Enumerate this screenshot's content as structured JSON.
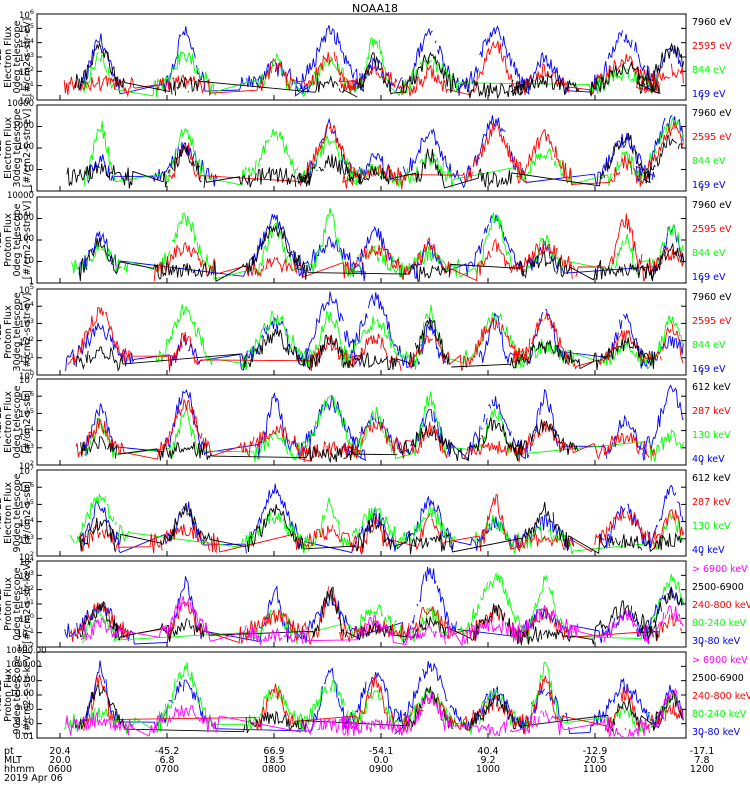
{
  "title": "NOAA18",
  "date_label": "2019 Apr 06",
  "axis_rows": [
    {
      "label": "pt",
      "values": [
        "20.4",
        "-45.2",
        "66.9",
        "-54.1",
        "40.4",
        "-12.9",
        "-17.1"
      ]
    },
    {
      "label": "MLT",
      "values": [
        "20.0",
        "6.8",
        "18.5",
        "0.0",
        "9.2",
        "20.5",
        "7.8"
      ]
    },
    {
      "label": "hhmm",
      "values": [
        "0600",
        "0700",
        "0800",
        "0900",
        "1000",
        "1100",
        "1200"
      ]
    }
  ],
  "colors": {
    "blue": "#0000ff",
    "red": "#ff0000",
    "green": "#00ff00",
    "black": "#000000",
    "magenta": "#ff00ff"
  },
  "chart_data": [
    {
      "type": "line",
      "ylabel": [
        "TED",
        "Electron Flux",
        "0deg telescope",
        "[#/cm2-s-str-eV]"
      ],
      "ylim": [
        1,
        1000000
      ],
      "log": true,
      "yticks": [
        "10^0",
        "10^1",
        "10^2",
        "10^3",
        "10^4",
        "10^5",
        "10^6"
      ],
      "series": [
        {
          "name": "7960 eV",
          "color": "#000000"
        },
        {
          "name": "2595 eV",
          "color": "#ff0000"
        },
        {
          "name": "844 eV",
          "color": "#00ff00"
        },
        {
          "name": "169 eV",
          "color": "#0000ff"
        }
      ]
    },
    {
      "type": "line",
      "ylabel": [
        "TED",
        "Electron Flux",
        "30deg telescope",
        "[#/cm2-s-str-eV]"
      ],
      "ylim": [
        1,
        10000
      ],
      "log": true,
      "yticks": [
        "1",
        "10",
        "100",
        "1000",
        "10000"
      ],
      "series": [
        {
          "name": "7960 eV",
          "color": "#000000"
        },
        {
          "name": "2595 eV",
          "color": "#ff0000"
        },
        {
          "name": "844 eV",
          "color": "#00ff00"
        },
        {
          "name": "169 eV",
          "color": "#0000ff"
        }
      ]
    },
    {
      "type": "line",
      "ylabel": [
        "TED",
        "Proton Flux",
        "0deg telescope",
        "[#/cm2-s-str-eV]"
      ],
      "ylim": [
        1,
        10000
      ],
      "log": true,
      "yticks": [
        "1",
        "10",
        "100",
        "1000",
        "10000"
      ],
      "series": [
        {
          "name": "7960 eV",
          "color": "#000000"
        },
        {
          "name": "2595 eV",
          "color": "#ff0000"
        },
        {
          "name": "844 eV",
          "color": "#00ff00"
        },
        {
          "name": "169 eV",
          "color": "#0000ff"
        }
      ]
    },
    {
      "type": "line",
      "ylabel": [
        "TED",
        "Proton Flux",
        "30deg telescope",
        "[#/cm2-s-str-eV]"
      ],
      "ylim": [
        1,
        100000
      ],
      "log": true,
      "yticks": [
        "10^0",
        "10^1",
        "10^2",
        "10^3",
        "10^4",
        "10^5"
      ],
      "series": [
        {
          "name": "7960 eV",
          "color": "#000000"
        },
        {
          "name": "2595 eV",
          "color": "#ff0000"
        },
        {
          "name": "844 eV",
          "color": "#00ff00"
        },
        {
          "name": "169 eV",
          "color": "#0000ff"
        }
      ]
    },
    {
      "type": "line",
      "ylabel": [
        "MEPED",
        "Electron Flux",
        "0deg telescope",
        "[#/cm2-s-str]"
      ],
      "ylim": [
        100,
        10000000
      ],
      "log": true,
      "yticks": [
        "10^2",
        "10^3",
        "10^4",
        "10^5",
        "10^6",
        "10^7"
      ],
      "series": [
        {
          "name": "612 keV",
          "color": "#000000"
        },
        {
          "name": "287 keV",
          "color": "#ff0000"
        },
        {
          "name": "130 keV",
          "color": "#00ff00"
        },
        {
          "name": "40 keV",
          "color": "#0000ff"
        }
      ]
    },
    {
      "type": "line",
      "ylabel": [
        "MEPED",
        "Electron Flux",
        "90deg telescope",
        "[#/cm2-s-str]"
      ],
      "ylim": [
        100,
        10000000
      ],
      "log": true,
      "yticks": [
        "10^2",
        "10^3",
        "10^4",
        "10^5",
        "10^6",
        "10^7"
      ],
      "series": [
        {
          "name": "612 keV",
          "color": "#000000"
        },
        {
          "name": "287 keV",
          "color": "#ff0000"
        },
        {
          "name": "130 keV",
          "color": "#00ff00"
        },
        {
          "name": "40 keV",
          "color": "#0000ff"
        }
      ]
    },
    {
      "type": "line",
      "ylabel": [
        "MEPED",
        "Proton Flux",
        "0deg telescope",
        "[#/cm2-s-str-keV]"
      ],
      "ylim": [
        0.01,
        10000
      ],
      "log": true,
      "yticks": [
        "10^-2",
        "10^-1",
        "10^0",
        "10^1",
        "10^2",
        "10^3",
        "10^4"
      ],
      "series": [
        {
          "name": "> 6900 keV",
          "color": "#ff00ff"
        },
        {
          "name": "2500-6900",
          "color": "#000000"
        },
        {
          "name": "240-800 keV",
          "color": "#ff0000"
        },
        {
          "name": "80-240 keV",
          "color": "#00ff00"
        },
        {
          "name": "30-80 keV",
          "color": "#0000ff"
        }
      ]
    },
    {
      "type": "line",
      "ylabel": [
        "MEPED",
        "Proton Flux",
        "90deg telescope",
        "[#/cm2-s-str-keV]"
      ],
      "ylim": [
        0.01,
        10000
      ],
      "log": true,
      "yticks": [
        "0.01",
        "0.10",
        "1.00",
        "10.00",
        "100.00",
        "1000.00",
        "10000.00"
      ],
      "series": [
        {
          "name": "> 6900 keV",
          "color": "#ff00ff"
        },
        {
          "name": "2500-6900",
          "color": "#000000"
        },
        {
          "name": "240-800 keV",
          "color": "#ff0000"
        },
        {
          "name": "80-240 keV",
          "color": "#00ff00"
        },
        {
          "name": "30-80 keV",
          "color": "#0000ff"
        }
      ]
    }
  ]
}
